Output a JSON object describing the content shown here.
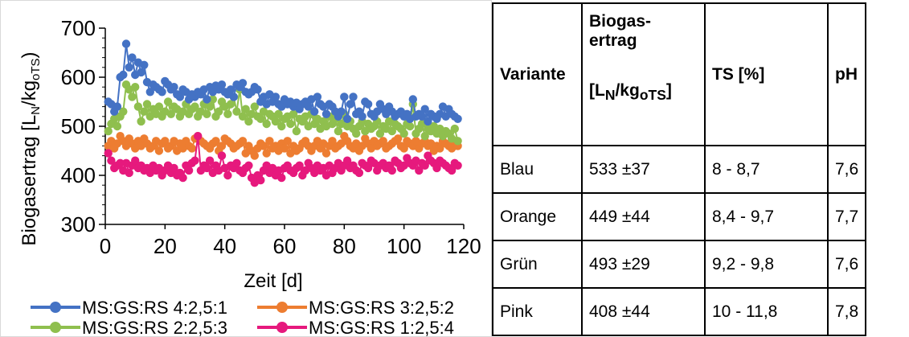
{
  "chart_data": {
    "type": "line",
    "xlabel": "Zeit [d]",
    "ylabel_main": "Biogasertrag [L",
    "ylabel_sub1": "N",
    "ylabel_mid": "/kg",
    "ylabel_sub2": "oTS",
    "ylabel_end": ")",
    "xlim": [
      0,
      120
    ],
    "ylim": [
      300,
      700
    ],
    "x_ticks": [
      "0",
      "20",
      "40",
      "60",
      "80",
      "100",
      "120"
    ],
    "y_ticks": [
      "300",
      "400",
      "500",
      "600",
      "700"
    ],
    "legend_position": "bottom",
    "series": [
      {
        "name": "MS:GS:RS 4:2,5:1",
        "color": "#4472C4",
        "x": [
          1,
          2,
          3,
          4,
          5,
          6,
          7,
          8,
          9,
          10,
          11,
          12,
          13,
          14,
          15,
          16,
          17,
          18,
          19,
          20,
          21,
          22,
          23,
          24,
          25,
          26,
          27,
          28,
          29,
          30,
          31,
          32,
          33,
          34,
          35,
          36,
          37,
          38,
          39,
          40,
          41,
          42,
          43,
          44,
          45,
          46,
          47,
          48,
          49,
          50,
          51,
          52,
          53,
          54,
          55,
          56,
          57,
          58,
          59,
          60,
          61,
          62,
          63,
          64,
          65,
          66,
          67,
          68,
          69,
          70,
          71,
          72,
          73,
          74,
          75,
          76,
          77,
          78,
          79,
          80,
          81,
          82,
          83,
          84,
          85,
          86,
          87,
          88,
          89,
          90,
          91,
          92,
          93,
          94,
          95,
          96,
          97,
          98,
          99,
          100,
          101,
          102,
          103,
          104,
          105,
          106,
          107,
          108,
          109,
          110,
          111,
          112,
          113,
          114,
          115,
          116,
          117,
          118
        ],
        "y": [
          550,
          545,
          530,
          540,
          600,
          605,
          668,
          620,
          640,
          605,
          630,
          610,
          625,
          590,
          570,
          585,
          580,
          575,
          570,
          592,
          585,
          575,
          580,
          565,
          560,
          575,
          570,
          555,
          565,
          560,
          570,
          565,
          575,
          555,
          580,
          570,
          583,
          575,
          585,
          570,
          565,
          575,
          560,
          585,
          580,
          588,
          570,
          565,
          570,
          580,
          575,
          550,
          560,
          545,
          565,
          550,
          560,
          545,
          540,
          555,
          545,
          550,
          540,
          548,
          535,
          545,
          550,
          540,
          555,
          530,
          560,
          545,
          540,
          525,
          545,
          540,
          530,
          520,
          530,
          560,
          515,
          545,
          560,
          525,
          530,
          520,
          550,
          545,
          525,
          520,
          530,
          545,
          535,
          525,
          540,
          530,
          520,
          525,
          530,
          520,
          525,
          515,
          555,
          520,
          525,
          520,
          535,
          510,
          525,
          520,
          515,
          525,
          540,
          520,
          535,
          525,
          520,
          515
        ]
      },
      {
        "name": "MS:GS:RS 3:2,5:2",
        "color": "#ED7D31",
        "x": [
          1,
          2,
          3,
          4,
          5,
          6,
          7,
          8,
          9,
          10,
          11,
          12,
          13,
          14,
          15,
          16,
          17,
          18,
          19,
          20,
          21,
          22,
          23,
          24,
          25,
          26,
          27,
          28,
          29,
          30,
          31,
          32,
          33,
          34,
          35,
          36,
          37,
          38,
          39,
          40,
          41,
          42,
          43,
          44,
          45,
          46,
          47,
          48,
          49,
          50,
          51,
          52,
          53,
          54,
          55,
          56,
          57,
          58,
          59,
          60,
          61,
          62,
          63,
          64,
          65,
          66,
          67,
          68,
          69,
          70,
          71,
          72,
          73,
          74,
          75,
          76,
          77,
          78,
          79,
          80,
          81,
          82,
          83,
          84,
          85,
          86,
          87,
          88,
          89,
          90,
          91,
          92,
          93,
          94,
          95,
          96,
          97,
          98,
          99,
          100,
          101,
          102,
          103,
          104,
          105,
          106,
          107,
          108,
          109,
          110,
          111,
          112,
          113,
          114,
          115,
          116,
          117,
          118
        ],
        "y": [
          460,
          470,
          455,
          465,
          480,
          470,
          460,
          475,
          465,
          455,
          470,
          460,
          475,
          465,
          455,
          460,
          470,
          450,
          465,
          470,
          455,
          460,
          470,
          450,
          465,
          455,
          470,
          460,
          455,
          475,
          480,
          470,
          465,
          460,
          455,
          465,
          470,
          450,
          460,
          475,
          470,
          465,
          455,
          460,
          465,
          470,
          445,
          460,
          450,
          440,
          455,
          465,
          460,
          445,
          470,
          455,
          460,
          450,
          465,
          455,
          470,
          445,
          460,
          450,
          455,
          465,
          470,
          460,
          450,
          460,
          470,
          455,
          465,
          445,
          460,
          470,
          455,
          460,
          465,
          480,
          470,
          460,
          455,
          465,
          450,
          460,
          475,
          465,
          455,
          470,
          460,
          465,
          470,
          455,
          460,
          465,
          470,
          475,
          460,
          455,
          470,
          465,
          460,
          470,
          455,
          465,
          470,
          460,
          465,
          450,
          460,
          455,
          470,
          465,
          460,
          455,
          470,
          460
        ]
      },
      {
        "name": "MS:GS:RS 2:2,5:3",
        "color": "#8FBF4E",
        "x": [
          1,
          2,
          3,
          4,
          5,
          6,
          7,
          8,
          9,
          10,
          11,
          12,
          13,
          14,
          15,
          16,
          17,
          18,
          19,
          20,
          21,
          22,
          23,
          24,
          25,
          26,
          27,
          28,
          29,
          30,
          31,
          32,
          33,
          34,
          35,
          36,
          37,
          38,
          39,
          40,
          41,
          42,
          43,
          44,
          45,
          46,
          47,
          48,
          49,
          50,
          51,
          52,
          53,
          54,
          55,
          56,
          57,
          58,
          59,
          60,
          61,
          62,
          63,
          64,
          65,
          66,
          67,
          68,
          69,
          70,
          71,
          72,
          73,
          74,
          75,
          76,
          77,
          78,
          79,
          80,
          81,
          82,
          83,
          84,
          85,
          86,
          87,
          88,
          89,
          90,
          91,
          92,
          93,
          94,
          95,
          96,
          97,
          98,
          99,
          100,
          101,
          102,
          103,
          104,
          105,
          106,
          107,
          108,
          109,
          110,
          111,
          112,
          113,
          114,
          115,
          116,
          117,
          118
        ],
        "y": [
          490,
          505,
          515,
          500,
          520,
          530,
          585,
          575,
          560,
          580,
          540,
          510,
          530,
          545,
          520,
          535,
          525,
          540,
          520,
          530,
          550,
          525,
          540,
          535,
          520,
          530,
          545,
          525,
          535,
          540,
          520,
          530,
          545,
          525,
          540,
          555,
          520,
          530,
          550,
          540,
          525,
          545,
          560,
          530,
          575,
          520,
          535,
          510,
          525,
          540,
          520,
          515,
          530,
          505,
          525,
          520,
          510,
          525,
          500,
          515,
          520,
          505,
          525,
          490,
          515,
          510,
          520,
          500,
          525,
          505,
          515,
          495,
          510,
          500,
          520,
          505,
          515,
          490,
          505,
          525,
          500,
          510,
          495,
          485,
          500,
          510,
          490,
          505,
          495,
          500,
          510,
          485,
          500,
          495,
          510,
          490,
          505,
          500,
          495,
          485,
          505,
          500,
          545,
          485,
          495,
          505,
          480,
          495,
          490,
          500,
          485,
          495,
          480,
          490,
          485,
          475,
          495,
          470
        ]
      },
      {
        "name": "MS:GS:RS 1:2,5:4",
        "color": "#E6197D",
        "x": [
          1,
          2,
          3,
          4,
          5,
          6,
          7,
          8,
          9,
          10,
          11,
          12,
          13,
          14,
          15,
          16,
          17,
          18,
          19,
          20,
          21,
          22,
          23,
          24,
          25,
          26,
          27,
          28,
          29,
          30,
          31,
          32,
          33,
          34,
          35,
          36,
          37,
          38,
          39,
          40,
          41,
          42,
          43,
          44,
          45,
          46,
          47,
          48,
          49,
          50,
          51,
          52,
          53,
          54,
          55,
          56,
          57,
          58,
          59,
          60,
          61,
          62,
          63,
          64,
          65,
          66,
          67,
          68,
          69,
          70,
          71,
          72,
          73,
          74,
          75,
          76,
          77,
          78,
          79,
          80,
          81,
          82,
          83,
          84,
          85,
          86,
          87,
          88,
          89,
          90,
          91,
          92,
          93,
          94,
          95,
          96,
          97,
          98,
          99,
          100,
          101,
          102,
          103,
          104,
          105,
          106,
          107,
          108,
          109,
          110,
          111,
          112,
          113,
          114,
          115,
          116,
          117,
          118
        ],
        "y": [
          445,
          430,
          415,
          420,
          425,
          410,
          425,
          405,
          420,
          430,
          415,
          420,
          410,
          415,
          405,
          420,
          410,
          415,
          400,
          410,
          420,
          405,
          415,
          400,
          405,
          395,
          420,
          410,
          425,
          430,
          480,
          410,
          420,
          415,
          430,
          405,
          420,
          410,
          440,
          415,
          400,
          420,
          415,
          425,
          410,
          405,
          415,
          420,
          395,
          385,
          400,
          390,
          410,
          420,
          405,
          415,
          400,
          410,
          395,
          415,
          420,
          410,
          405,
          415,
          420,
          400,
          410,
          425,
          415,
          405,
          420,
          410,
          415,
          400,
          420,
          405,
          415,
          425,
          410,
          420,
          430,
          415,
          420,
          410,
          405,
          425,
          420,
          415,
          430,
          425,
          410,
          420,
          425,
          415,
          420,
          410,
          430,
          425,
          415,
          420,
          435,
          425,
          420,
          430,
          410,
          425,
          420,
          440,
          430,
          425,
          415,
          430,
          425,
          420,
          415,
          410,
          425,
          420
        ]
      }
    ]
  },
  "table": {
    "header": {
      "variante": "Variante",
      "yield_title_1": "Biogas-",
      "yield_title_2": "ertrag",
      "yield_unit_a": "[L",
      "yield_unit_sub1": "N",
      "yield_unit_b": "/kg",
      "yield_unit_sub2": "oTS",
      "yield_unit_c": "]",
      "ts": "TS [%]",
      "ph": "pH"
    },
    "rows": [
      {
        "variante": "Blau",
        "yield": "533 ±37",
        "ts": "8 - 8,7",
        "ph": "7,6"
      },
      {
        "variante": "Orange",
        "yield": "449 ±44",
        "ts": "8,4 - 9,7",
        "ph": "7,7"
      },
      {
        "variante": "Grün",
        "yield": "493 ±29",
        "ts": "9,2 - 9,8",
        "ph": "7,6"
      },
      {
        "variante": "Pink",
        "yield": "408 ±44",
        "ts": "10 - 11,8",
        "ph": "7,8"
      }
    ]
  }
}
